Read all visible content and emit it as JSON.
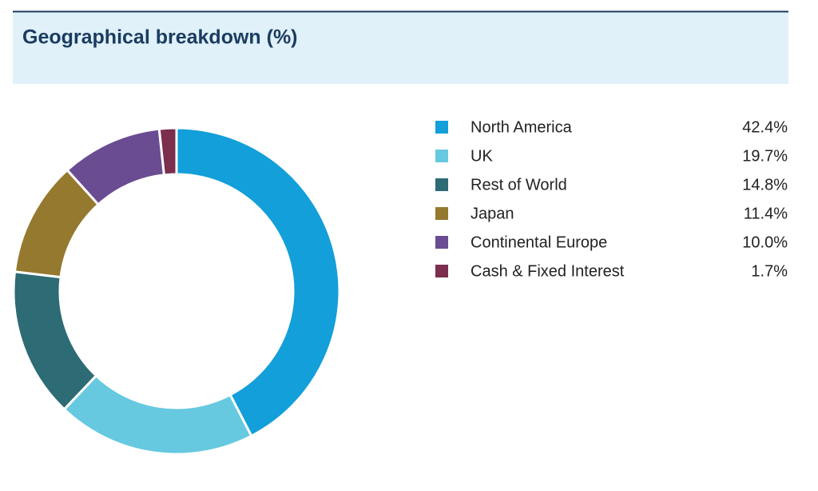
{
  "chart_data": {
    "type": "donut",
    "title": "Geographical breakdown (%)",
    "categories": [
      "North America",
      "UK",
      "Rest of World",
      "Japan",
      "Continental Europe",
      "Cash & Fixed Interest"
    ],
    "values": [
      42.4,
      19.7,
      14.8,
      11.4,
      10.0,
      1.7
    ],
    "value_labels": [
      "42.4%",
      "19.7%",
      "14.8%",
      "11.4%",
      "10.0%",
      "1.7%"
    ],
    "colors": [
      "#139fd9",
      "#66c9e0",
      "#2d6b75",
      "#94792f",
      "#6a4c93",
      "#7b2e4e"
    ],
    "legend": "right"
  }
}
